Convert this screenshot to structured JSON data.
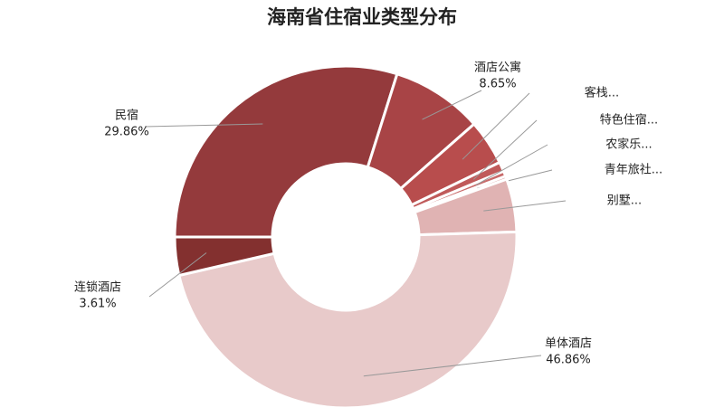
{
  "chart_data": {
    "type": "pie",
    "title": "海南省住宿业类型分布",
    "categories": [
      "民宿",
      "酒店公寓",
      "客栈...",
      "特色住宿...",
      "农家乐...",
      "青年旅社...",
      "别墅...",
      "单体酒店",
      "连锁酒店"
    ],
    "values": [
      29.86,
      8.65,
      4.3,
      0.9,
      0.5,
      0.3,
      5.02,
      46.86,
      3.61
    ],
    "value_labels": [
      "29.86%",
      "8.65%",
      null,
      null,
      null,
      null,
      null,
      "46.86%",
      "3.61%"
    ],
    "colors": [
      "#943a3c",
      "#a84446",
      "#b84d4d",
      "#c05a5a",
      "#c96b6b",
      "#d48a8a",
      "#e0b3b3",
      "#e8caca",
      "#83302f"
    ],
    "donut": true
  }
}
